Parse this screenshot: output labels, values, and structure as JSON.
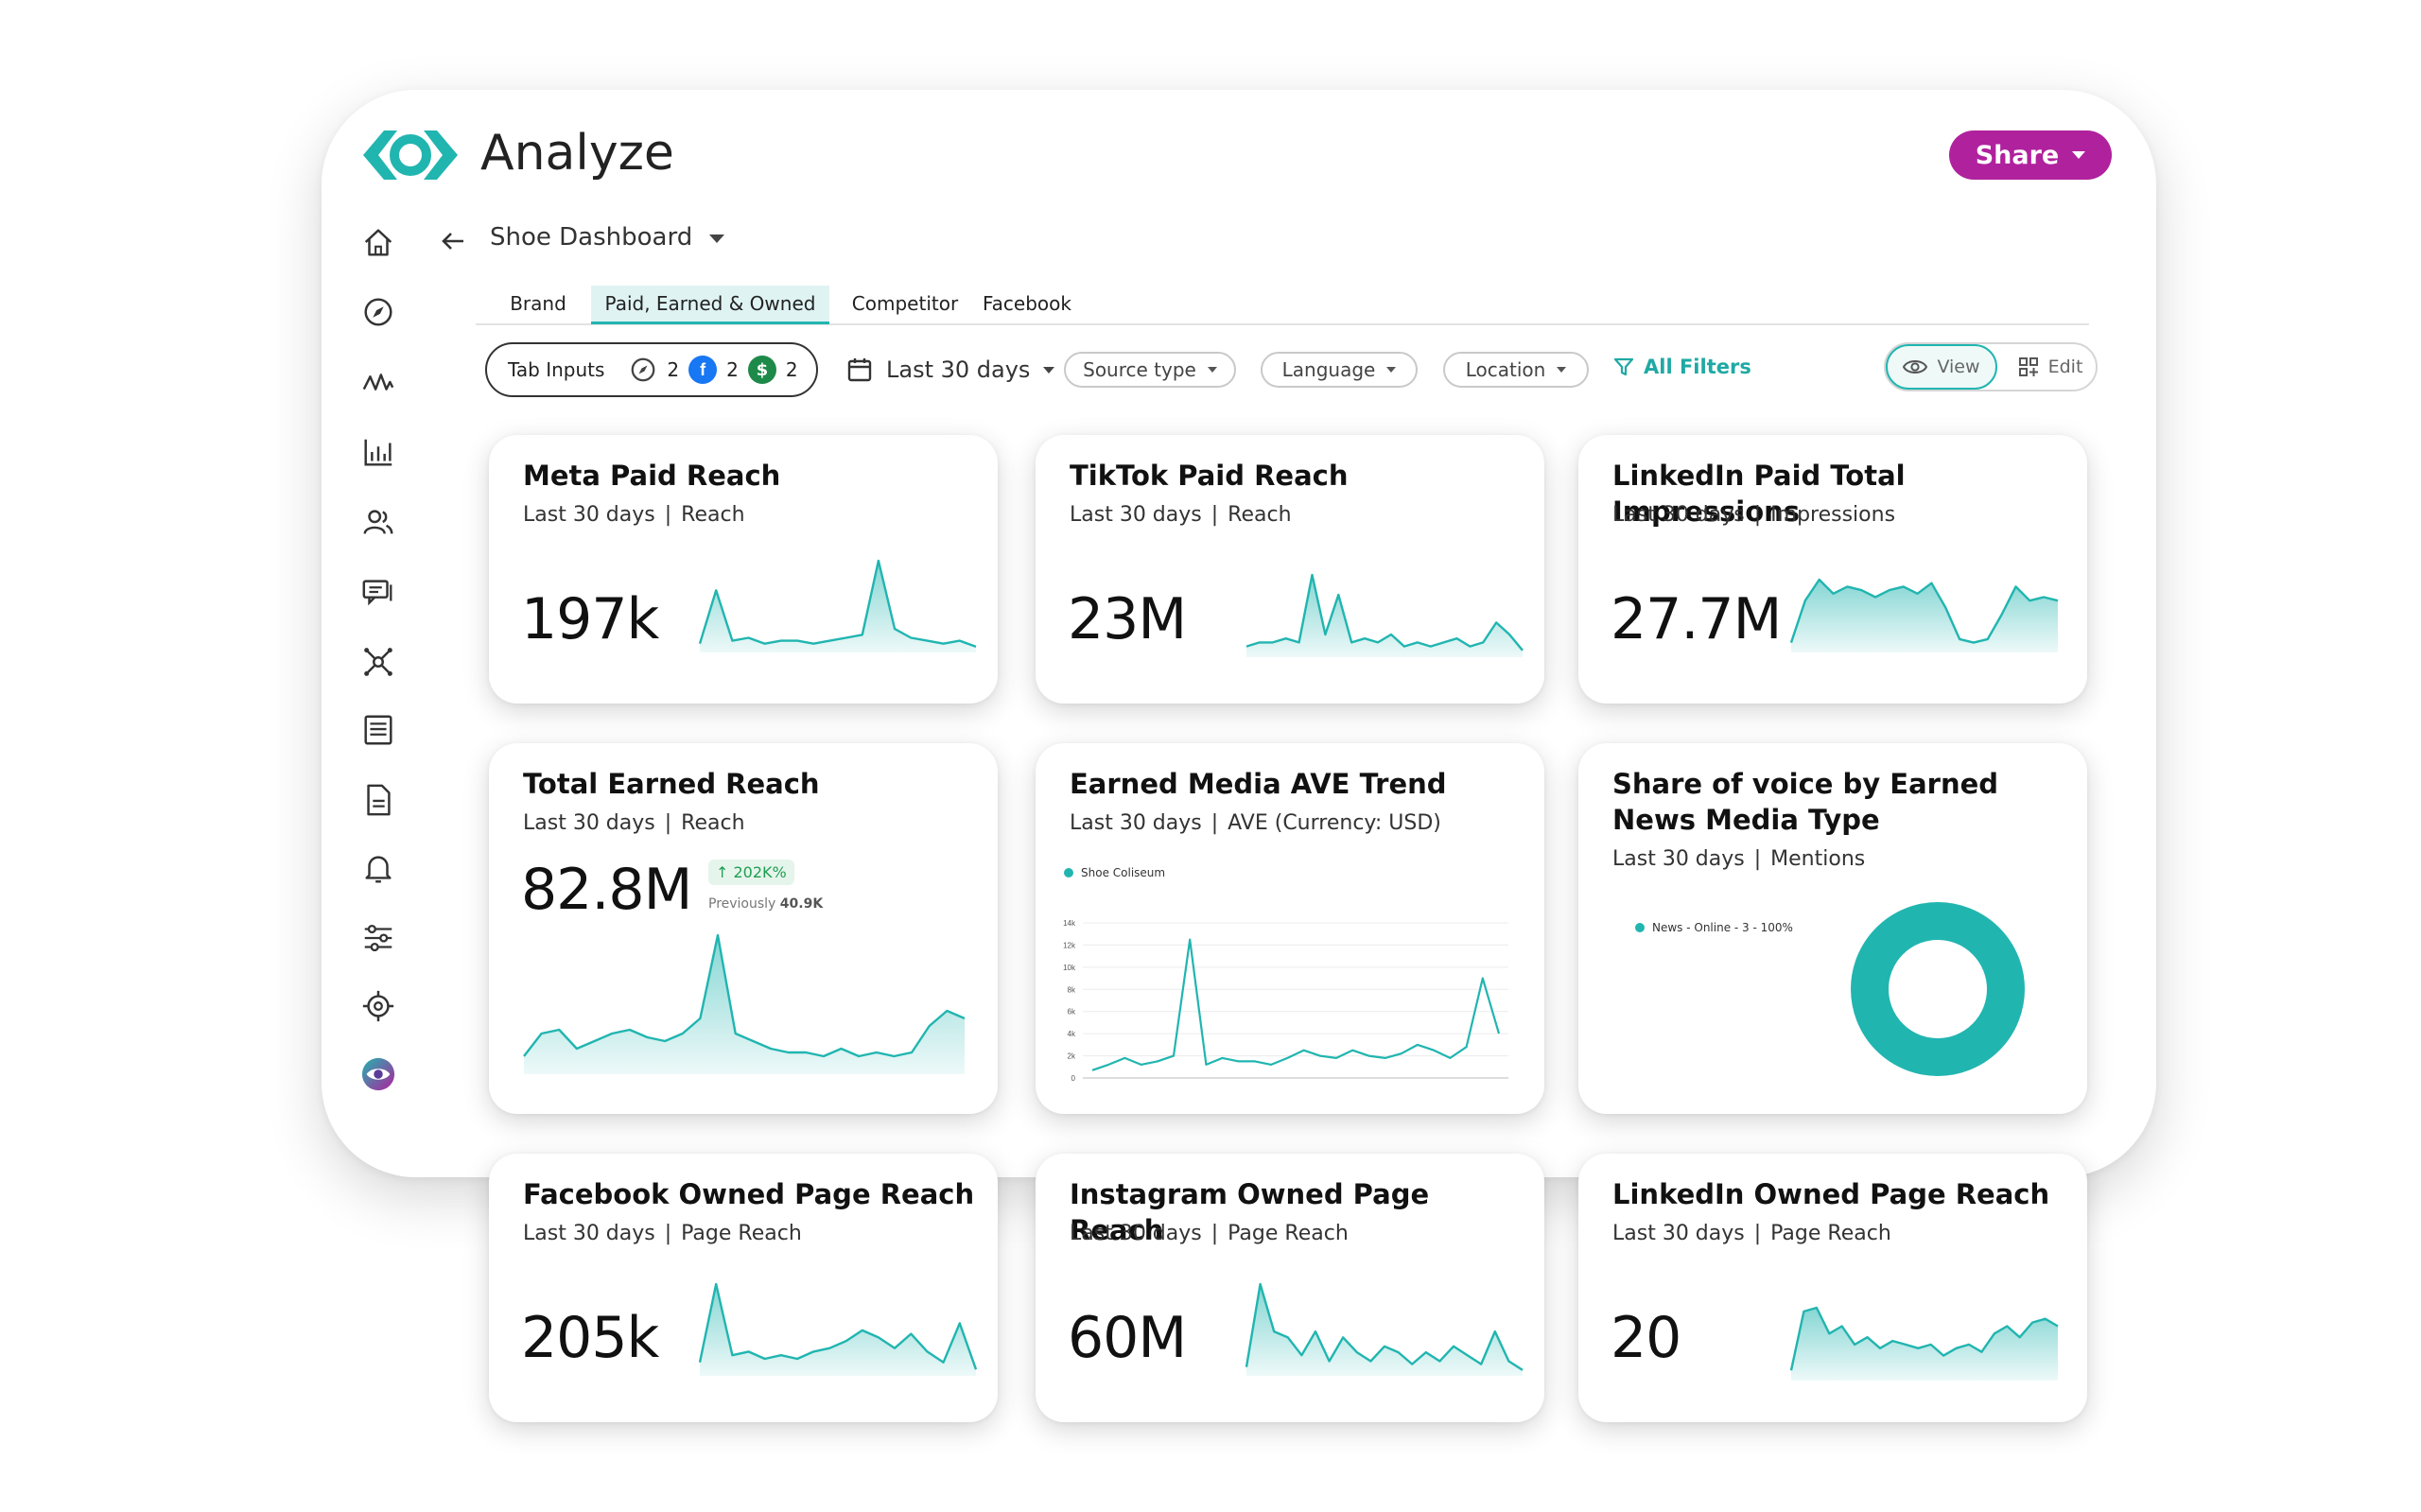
{
  "app": {
    "title": "Analyze",
    "share_label": "Share",
    "accent": "#21b5b0",
    "share_color": "#b0219d"
  },
  "sidebar": [
    {
      "icon": "home-icon"
    },
    {
      "icon": "compass-icon"
    },
    {
      "icon": "pulse-icon"
    },
    {
      "icon": "bar-chart-icon"
    },
    {
      "icon": "users-icon"
    },
    {
      "icon": "chat-icon"
    },
    {
      "icon": "network-icon"
    },
    {
      "icon": "list-icon"
    },
    {
      "icon": "document-icon"
    },
    {
      "icon": "bell-icon"
    },
    {
      "icon": "sliders-icon"
    },
    {
      "icon": "settings-icon"
    },
    {
      "icon": "eye-logo-icon"
    }
  ],
  "header": {
    "dashboard_name": "Shoe Dashboard"
  },
  "tabs": [
    "Brand",
    "Paid, Earned & Owned",
    "Competitor",
    "Facebook"
  ],
  "active_tab": "Paid, Earned & Owned",
  "filters": {
    "tab_inputs_label": "Tab Inputs",
    "tab_inputs": [
      {
        "icon": "compass-icon",
        "count": "2"
      },
      {
        "icon": "facebook-icon",
        "count": "2"
      },
      {
        "icon": "dollar-icon",
        "count": "2"
      }
    ],
    "date_range": "Last 30 days",
    "source_type": "Source type",
    "language": "Language",
    "location": "Location",
    "all_filters": "All Filters",
    "view": "View",
    "edit": "Edit"
  },
  "cards": {
    "meta": {
      "title": "Meta Paid Reach",
      "period": "Last 30 days",
      "metric": "Reach",
      "value": "197k"
    },
    "tiktok": {
      "title": "TikTok Paid Reach",
      "period": "Last 30 days",
      "metric": "Reach",
      "value": "23M"
    },
    "linkedin_paid": {
      "title": "LinkedIn Paid Total Impressions",
      "period": "Last 30 days",
      "metric": "Impressions",
      "value": "27.7M"
    },
    "earned": {
      "title": "Total Earned Reach",
      "period": "Last 30 days",
      "metric": "Reach",
      "value": "82.8M",
      "delta": "202K%",
      "previous_label": "Previously",
      "previous_value": "40.9K"
    },
    "ave": {
      "title": "Earned Media AVE Trend",
      "period": "Last 30 days",
      "metric": "AVE (Currency: USD)",
      "legend": "Shoe Coliseum"
    },
    "sov": {
      "title": "Share of voice by Earned News Media Type",
      "period": "Last 30 days",
      "metric": "Mentions",
      "legend": "News - Online - 3 - 100%"
    },
    "fb_owned": {
      "title": "Facebook Owned Page Reach",
      "period": "Last 30 days",
      "metric": "Page Reach",
      "value": "205k"
    },
    "ig_owned": {
      "title": "Instagram Owned Page Reach",
      "period": "Last 30 days",
      "metric": "Page Reach",
      "value": "60M"
    },
    "li_owned": {
      "title": "LinkedIn Owned Page Reach",
      "period": "Last 30 days",
      "metric": "Page Reach",
      "value": "20"
    }
  },
  "chart_data": [
    {
      "type": "area",
      "id": "meta",
      "values": [
        2,
        20,
        3,
        4,
        2,
        3,
        3,
        2,
        3,
        4,
        5,
        30,
        7,
        4,
        3,
        2,
        3,
        1
      ]
    },
    {
      "type": "area",
      "id": "tiktok",
      "values": [
        2,
        3,
        3,
        4,
        3,
        20,
        5,
        15,
        3,
        4,
        3,
        5,
        2,
        3,
        2,
        3,
        4,
        2,
        3,
        8,
        5,
        1
      ]
    },
    {
      "type": "area",
      "id": "linkedin_paid",
      "values": [
        2,
        14,
        20,
        16,
        18,
        17,
        15,
        17,
        18,
        16,
        19,
        12,
        3,
        2,
        3,
        10,
        18,
        14,
        15,
        14
      ]
    },
    {
      "type": "area",
      "id": "earned",
      "values": [
        4,
        10,
        11,
        6,
        8,
        10,
        11,
        9,
        8,
        10,
        14,
        36,
        10,
        8,
        6,
        5,
        5,
        4,
        6,
        4,
        5,
        4,
        5,
        12,
        16,
        14
      ]
    },
    {
      "type": "line",
      "id": "ave",
      "title": "Earned Media AVE Trend",
      "series": [
        {
          "name": "Shoe Coliseum",
          "values": [
            7,
            12,
            18,
            12,
            15,
            20,
            125,
            12,
            18,
            15,
            15,
            12,
            18,
            25,
            20,
            18,
            25,
            20,
            18,
            22,
            30,
            25,
            18,
            28,
            90,
            40
          ]
        }
      ],
      "yticks": [
        "0",
        "2k",
        "4k",
        "6k",
        "8k",
        "10k",
        "12k",
        "14k"
      ]
    },
    {
      "type": "pie",
      "id": "sov",
      "slices": [
        {
          "label": "News - Online",
          "count": 3,
          "percent": 100
        }
      ]
    },
    {
      "type": "area",
      "id": "fb_owned",
      "values": [
        3,
        25,
        5,
        6,
        4,
        5,
        4,
        6,
        7,
        9,
        12,
        10,
        7,
        11,
        6,
        3,
        14,
        1
      ]
    },
    {
      "type": "area",
      "id": "ig_owned",
      "values": [
        2,
        30,
        14,
        12,
        6,
        14,
        4,
        12,
        7,
        4,
        9,
        7,
        3,
        7,
        4,
        9,
        6,
        3,
        14,
        4,
        1
      ]
    },
    {
      "type": "area",
      "id": "li_owned",
      "values": [
        2,
        18,
        19,
        12,
        14,
        9,
        11,
        8,
        10,
        9,
        8,
        9,
        6,
        8,
        9,
        7,
        12,
        14,
        11,
        15,
        16,
        14
      ]
    }
  ]
}
